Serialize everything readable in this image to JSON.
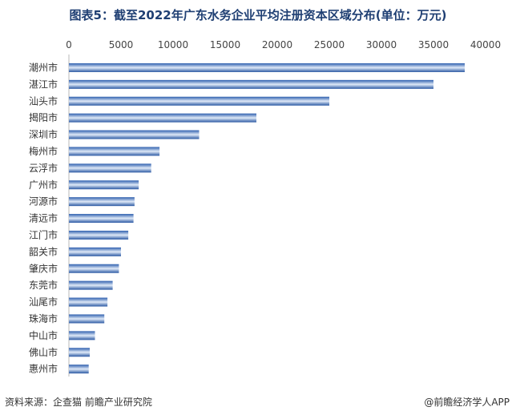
{
  "title": "图表5：截至2022年广东水务企业平均注册资本区域分布(单位：万元)",
  "source": "资料来源：企查猫 前瞻产业研究院",
  "brand": "@前瞻经济学人APP",
  "colors": {
    "bar_dark": "#1f4f9a",
    "bar_light": "#dce8f7",
    "title": "#1f3f73"
  },
  "chart_data": {
    "type": "bar",
    "orientation": "horizontal",
    "categories": [
      "潮州市",
      "湛江市",
      "汕头市",
      "揭阳市",
      "深圳市",
      "梅州市",
      "云浮市",
      "广州市",
      "河源市",
      "清远市",
      "江门市",
      "韶关市",
      "肇庆市",
      "东莞市",
      "汕尾市",
      "珠海市",
      "中山市",
      "佛山市",
      "惠州市"
    ],
    "values": [
      38000,
      35000,
      25000,
      18000,
      12500,
      8700,
      7900,
      6700,
      6300,
      6200,
      5700,
      5000,
      4800,
      4200,
      3700,
      3400,
      2500,
      2000,
      1900
    ],
    "xticks": [
      0,
      5000,
      10000,
      15000,
      20000,
      25000,
      30000,
      35000,
      40000
    ],
    "xlim": [
      0,
      40000
    ],
    "grid": false,
    "legend": "none"
  }
}
